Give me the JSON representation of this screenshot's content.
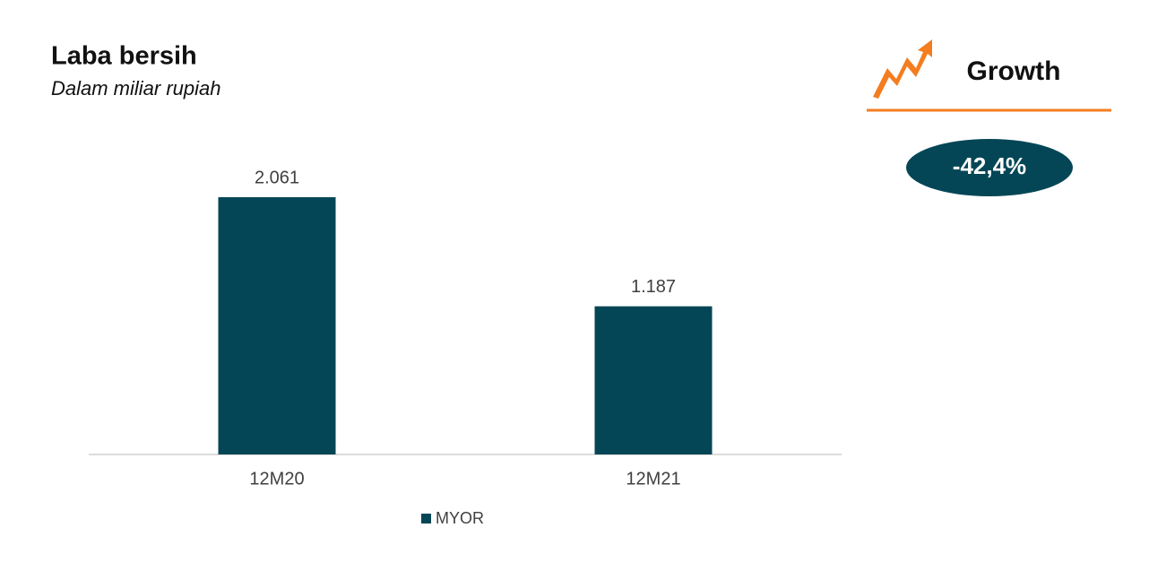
{
  "chart_data": {
    "type": "bar",
    "title": "Laba bersih",
    "subtitle": "Dalam miliar rupiah",
    "categories": [
      "12M20",
      "12M21"
    ],
    "series": [
      {
        "name": "MYOR",
        "color": "#044656",
        "values": [
          2061,
          1187
        ],
        "value_labels": [
          "2.061",
          "1.187"
        ]
      }
    ],
    "annotations": [
      "Growth",
      "-42,4%"
    ]
  }
}
